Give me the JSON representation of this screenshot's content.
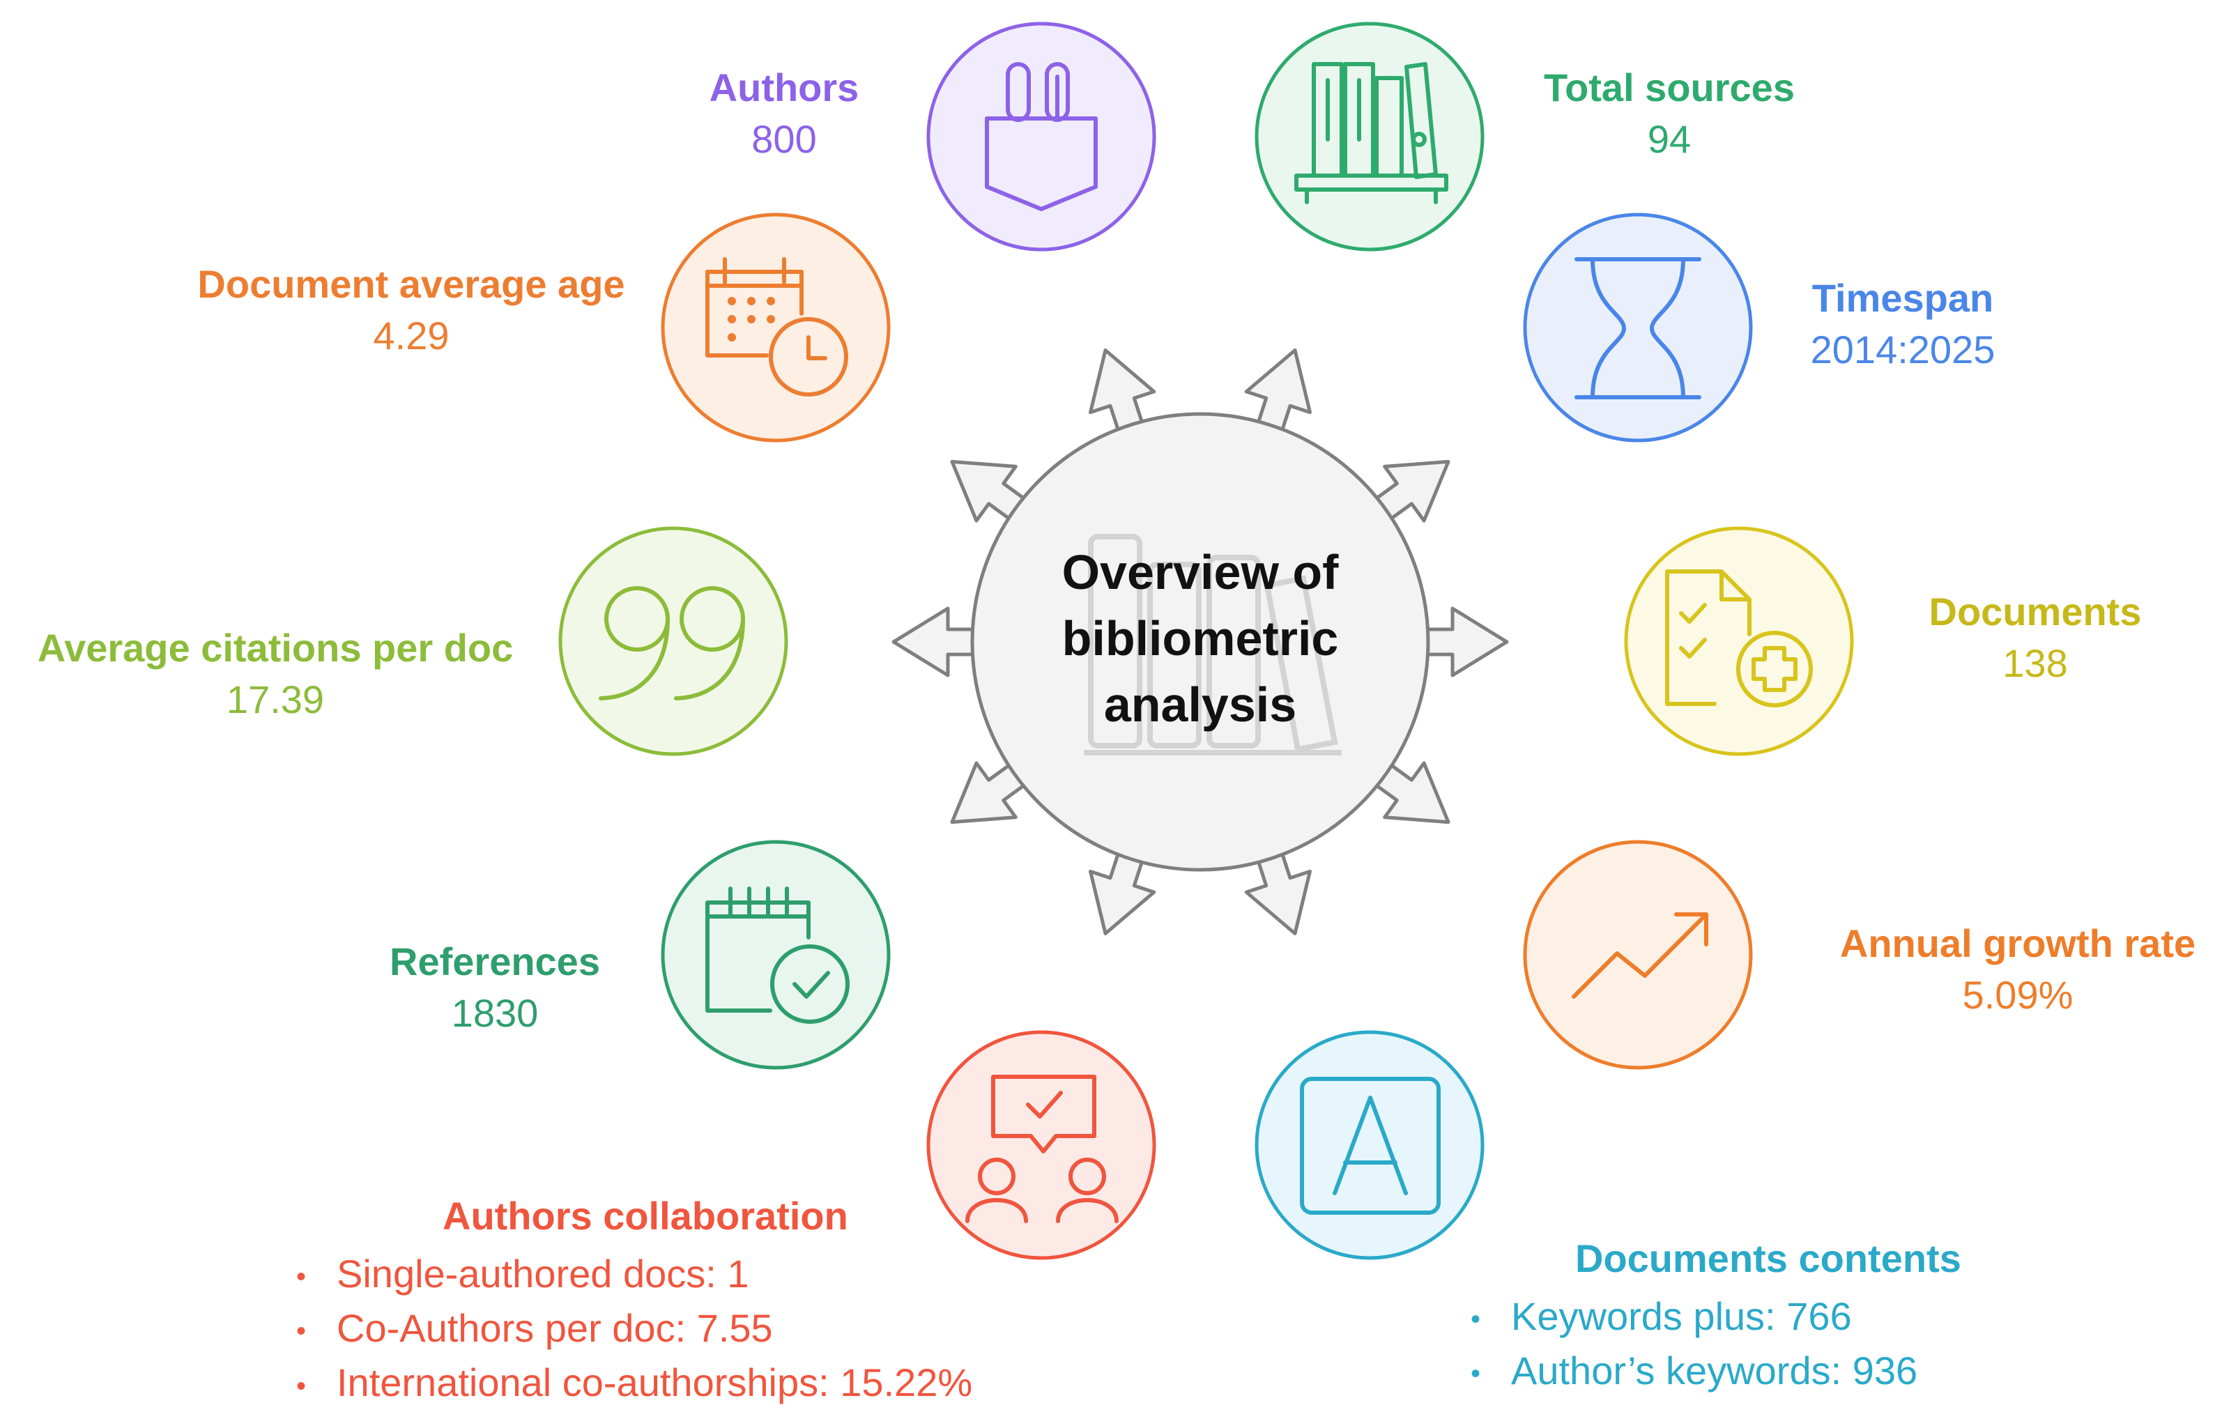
{
  "center": {
    "line1": "Overview of",
    "line2": "bibliometric",
    "line3": "analysis"
  },
  "colors": {
    "authors": "#8d62e8",
    "total_sources": "#2eaa6d",
    "timespan": "#4a86e8",
    "documents": "#c7b81a",
    "annual_growth": "#ee7d2a",
    "documents_contents": "#2aa9c9",
    "authors_collaboration": "#f0553e",
    "references": "#2e9e6c",
    "average_citations": "#8cbc3a",
    "document_age": "#ed7d31"
  },
  "nodes": {
    "authors": {
      "title": "Authors",
      "value": "800",
      "icon": "pen-holder-icon"
    },
    "total_sources": {
      "title": "Total sources",
      "value": "94",
      "icon": "bookshelf-icon"
    },
    "timespan": {
      "title": "Timespan",
      "value": "2014:2025",
      "icon": "hourglass-icon"
    },
    "documents": {
      "title": "Documents",
      "value": "138",
      "icon": "checklist-add-icon"
    },
    "annual_growth": {
      "title": "Annual growth rate",
      "value": "5.09%",
      "icon": "trend-up-icon"
    },
    "documents_contents": {
      "title": "Documents contents",
      "items": [
        "Keywords plus: 766",
        "Author’s keywords: 936"
      ],
      "icon": "letter-a-icon"
    },
    "authors_collaboration": {
      "title": "Authors collaboration",
      "items": [
        "Single-authored docs: 1",
        "Co-Authors per doc: 7.55",
        "International co-authorships: 15.22%"
      ],
      "icon": "meeting-icon"
    },
    "references": {
      "title": "References",
      "value": "1830",
      "icon": "calendar-check-icon"
    },
    "average_citations": {
      "title": "Average citations per doc",
      "value": "17.39",
      "icon": "quote-icon"
    },
    "document_age": {
      "title": "Document average age",
      "value": "4.29",
      "icon": "calendar-clock-icon"
    }
  },
  "bullet": "•"
}
